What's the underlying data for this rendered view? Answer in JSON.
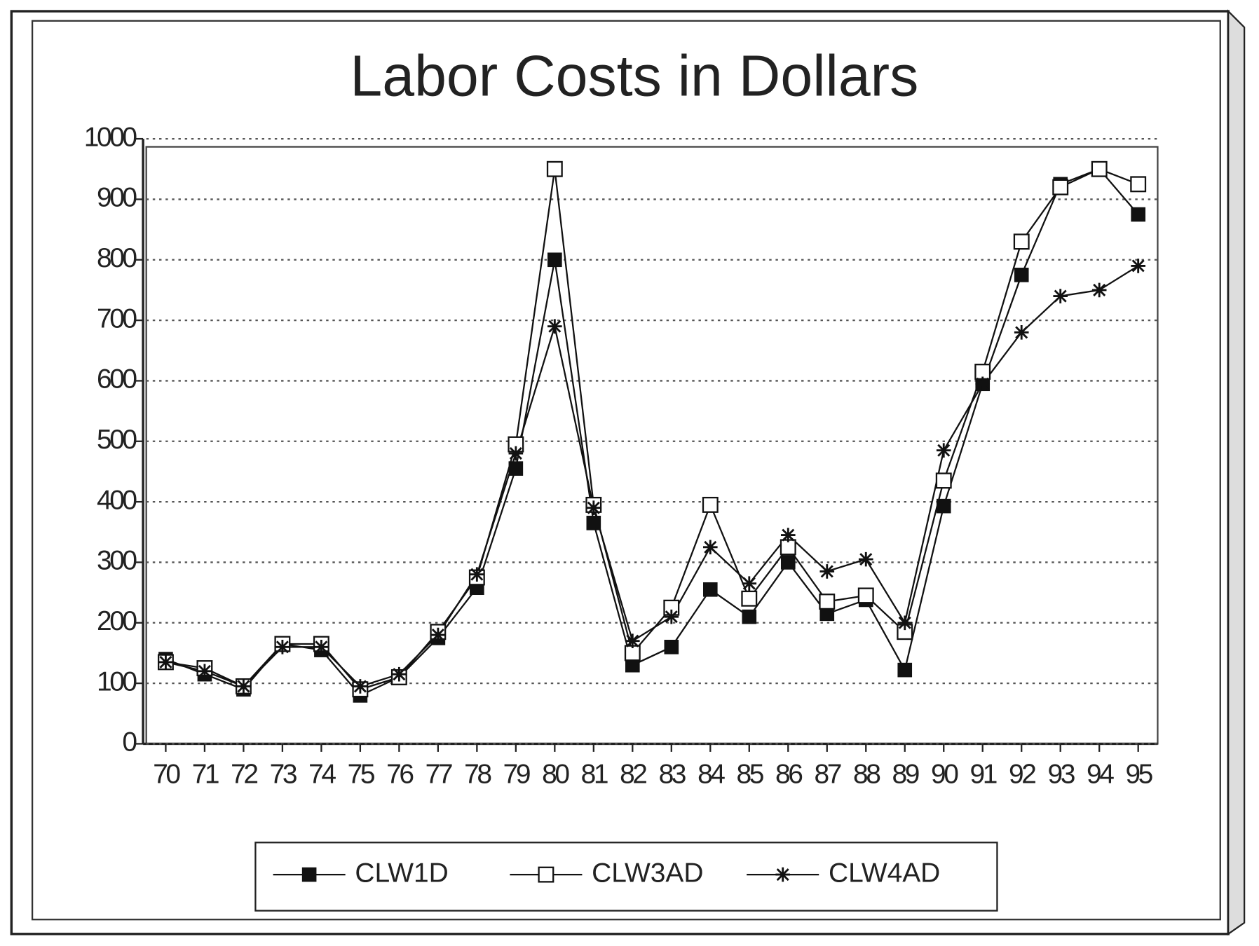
{
  "chart_data": {
    "type": "line",
    "title": "Labor Costs in Dollars",
    "categories": [
      "70",
      "71",
      "72",
      "73",
      "74",
      "75",
      "76",
      "77",
      "78",
      "79",
      "80",
      "81",
      "82",
      "83",
      "84",
      "85",
      "86",
      "87",
      "88",
      "89",
      "90",
      "91",
      "92",
      "93",
      "94",
      "95"
    ],
    "series": [
      {
        "name": "CLW1D",
        "color": "#111111",
        "marker": "filled-square",
        "values": [
          140,
          115,
          90,
          165,
          155,
          80,
          110,
          175,
          258,
          455,
          800,
          365,
          130,
          160,
          255,
          210,
          300,
          215,
          238,
          122,
          393,
          595,
          775,
          925,
          950,
          875
        ]
      },
      {
        "name": "CLW3AD",
        "color": "#111111",
        "marker": "open-square",
        "values": [
          135,
          125,
          95,
          165,
          165,
          90,
          110,
          185,
          275,
          495,
          950,
          395,
          150,
          225,
          395,
          240,
          325,
          235,
          245,
          185,
          435,
          615,
          830,
          920,
          950,
          925
        ]
      },
      {
        "name": "CLW4AD",
        "color": "#111111",
        "marker": "asterisk",
        "values": [
          135,
          120,
          95,
          160,
          160,
          95,
          115,
          180,
          280,
          480,
          690,
          390,
          170,
          210,
          325,
          265,
          345,
          285,
          305,
          200,
          485,
          595,
          680,
          740,
          750,
          790
        ]
      }
    ],
    "ylim": [
      0,
      1000
    ],
    "yticks": [
      0,
      100,
      200,
      300,
      400,
      500,
      600,
      700,
      800,
      900,
      1000
    ],
    "grid": true
  }
}
